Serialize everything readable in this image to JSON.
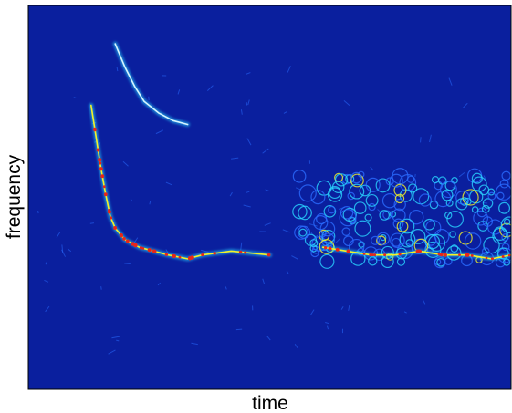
{
  "chart_data": {
    "type": "heatmap",
    "title": "",
    "xlabel": "time",
    "ylabel": "frequency",
    "grid": false,
    "legend": "none",
    "colormap": "jet",
    "colors": {
      "background": "#0a1f9e",
      "low": "#2a6cff",
      "mid": "#29d4ff",
      "high": "#f4f226",
      "peak": "#e6261b",
      "frame": "#000000"
    },
    "traces": [
      {
        "intensity": "medium",
        "points": [
          [
            0.18,
            0.9
          ],
          [
            0.2,
            0.84
          ],
          [
            0.22,
            0.79
          ],
          [
            0.24,
            0.75
          ],
          [
            0.27,
            0.72
          ],
          [
            0.3,
            0.7
          ],
          [
            0.33,
            0.69
          ]
        ]
      },
      {
        "intensity": "high",
        "points": [
          [
            0.13,
            0.74
          ],
          [
            0.14,
            0.66
          ],
          [
            0.15,
            0.58
          ],
          [
            0.16,
            0.51
          ],
          [
            0.17,
            0.45
          ],
          [
            0.18,
            0.42
          ],
          [
            0.2,
            0.39
          ],
          [
            0.23,
            0.37
          ],
          [
            0.26,
            0.36
          ],
          [
            0.29,
            0.35
          ],
          [
            0.33,
            0.34
          ],
          [
            0.36,
            0.35
          ],
          [
            0.42,
            0.36
          ],
          [
            0.5,
            0.35
          ]
        ]
      },
      {
        "intensity": "high",
        "points": [
          [
            0.61,
            0.37
          ],
          [
            0.66,
            0.36
          ],
          [
            0.71,
            0.35
          ],
          [
            0.76,
            0.35
          ],
          [
            0.81,
            0.36
          ],
          [
            0.86,
            0.35
          ],
          [
            0.91,
            0.35
          ],
          [
            0.96,
            0.34
          ],
          [
            1.0,
            0.35
          ]
        ]
      }
    ],
    "noise_band": {
      "x_range": [
        0.56,
        1.0
      ],
      "y_range": [
        0.33,
        0.56
      ]
    }
  }
}
